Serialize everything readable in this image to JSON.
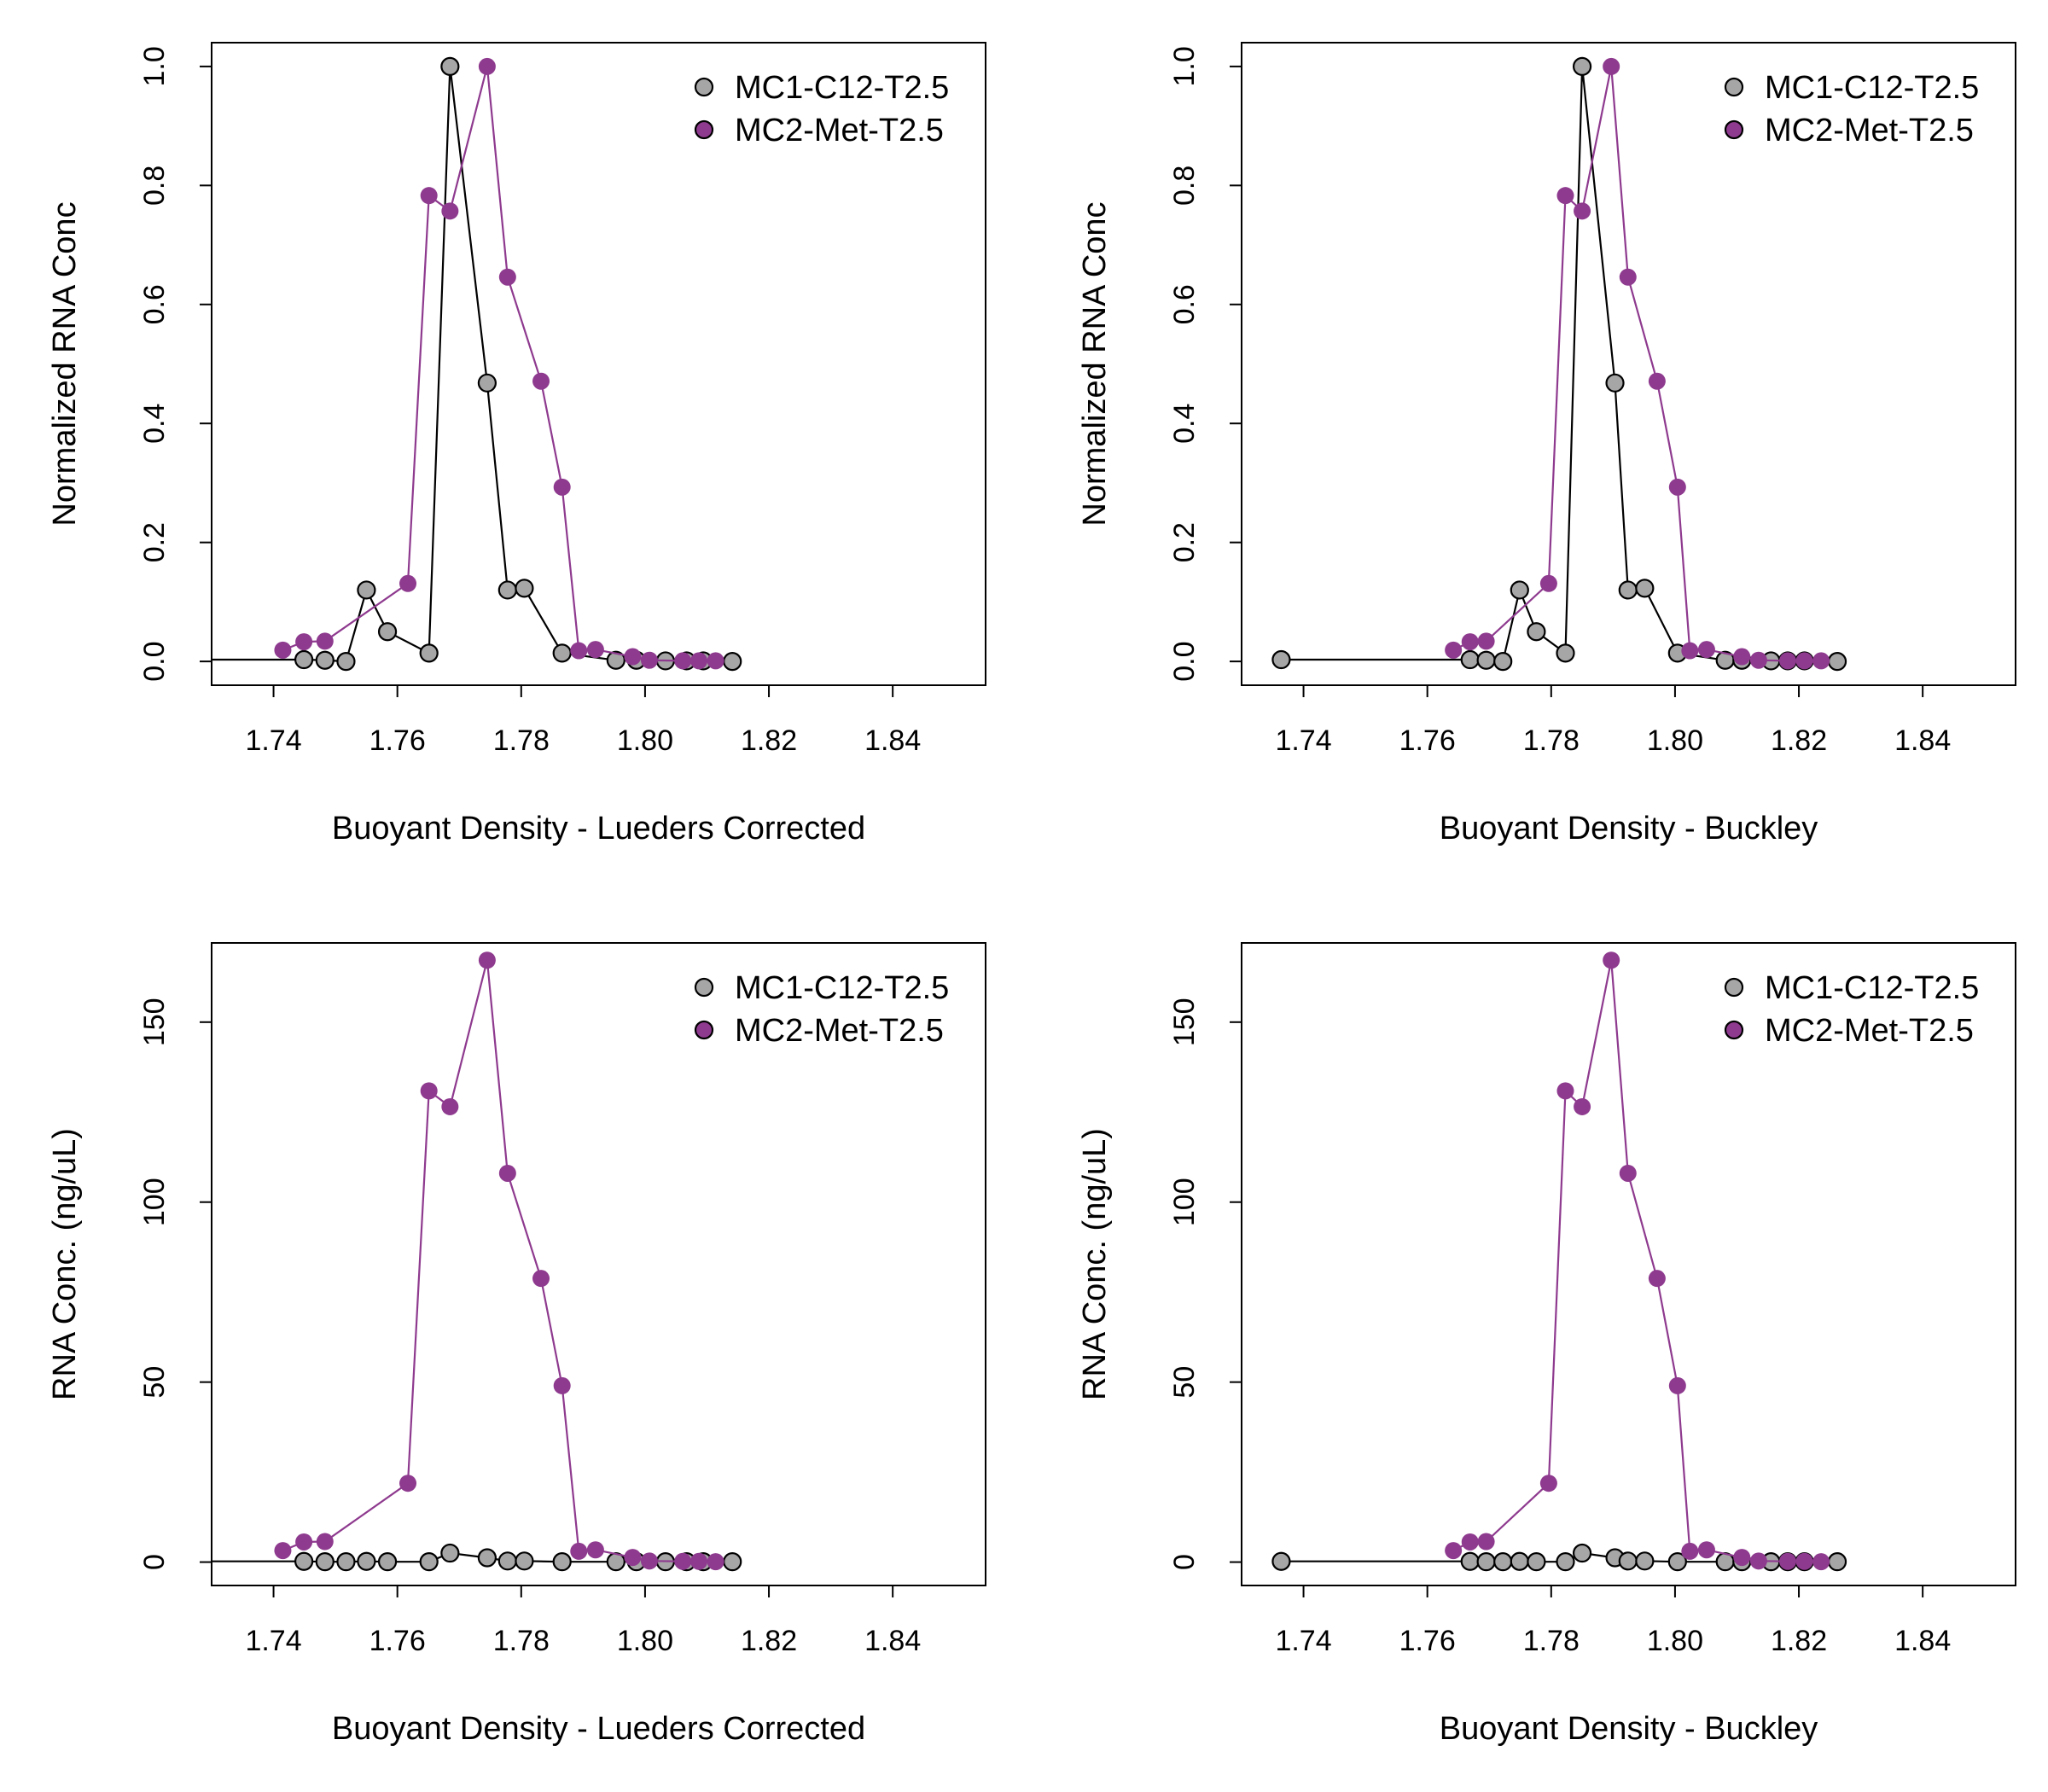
{
  "chart_data": [
    {
      "type": "line",
      "xlabel": "Buoyant Density - Lueders Corrected",
      "ylabel": "Normalized RNA Conc",
      "xlim": [
        1.73,
        1.855
      ],
      "ylim": [
        -0.04,
        1.04
      ],
      "xticks": [
        "1.74",
        "1.76",
        "1.78",
        "1.80",
        "1.82",
        "1.84"
      ],
      "yticks": [
        "0.0",
        "0.2",
        "0.4",
        "0.6",
        "0.8",
        "1.0"
      ],
      "legend": "top-right",
      "series": [
        {
          "name": "MC1-C12-T2.5",
          "color": "#000000",
          "marker_fill": "#a6a6a6",
          "x": [
            1.7248,
            1.7449,
            1.7483,
            1.7517,
            1.755,
            1.7584,
            1.7651,
            1.7685,
            1.7745,
            1.7778,
            1.7805,
            1.7866,
            1.7953,
            1.7986,
            1.8033,
            1.8067,
            1.8094,
            1.8141
          ],
          "y": [
            0.003,
            0.003,
            0.002,
            0.0,
            0.12,
            0.05,
            0.014,
            1.0,
            0.468,
            0.12,
            0.123,
            0.014,
            0.002,
            0.002,
            0.001,
            0.001,
            0.001,
            0.0
          ]
        },
        {
          "name": "MC2-Met-T2.5",
          "color": "#8e3a8e",
          "marker_fill": "#8e3a8e",
          "x": [
            1.7415,
            1.7449,
            1.7483,
            1.7617,
            1.7651,
            1.7685,
            1.7745,
            1.7778,
            1.7832,
            1.7866,
            1.7893,
            1.792,
            1.798,
            1.8007,
            1.8061,
            1.8087,
            1.8114
          ],
          "y": [
            0.019,
            0.033,
            0.034,
            0.131,
            0.783,
            0.757,
            1.0,
            0.646,
            0.471,
            0.293,
            0.018,
            0.02,
            0.008,
            0.002,
            0.001,
            0.001,
            0.001
          ]
        }
      ]
    },
    {
      "type": "line",
      "xlabel": "Buoyant Density - Buckley",
      "ylabel": "Normalized RNA Conc",
      "xlim": [
        1.73,
        1.855
      ],
      "ylim": [
        -0.04,
        1.04
      ],
      "xticks": [
        "1.74",
        "1.76",
        "1.78",
        "1.80",
        "1.82",
        "1.84"
      ],
      "yticks": [
        "0.0",
        "0.2",
        "0.4",
        "0.6",
        "0.8",
        "1.0"
      ],
      "legend": "top-right",
      "series": [
        {
          "name": "MC1-C12-T2.5",
          "color": "#000000",
          "marker_fill": "#a6a6a6",
          "x": [
            1.7364,
            1.7669,
            1.7695,
            1.7722,
            1.7749,
            1.7776,
            1.7823,
            1.785,
            1.7903,
            1.7924,
            1.7951,
            1.8004,
            1.8081,
            1.8108,
            1.8155,
            1.8182,
            1.8209,
            1.8262
          ],
          "y": [
            0.003,
            0.003,
            0.002,
            0.0,
            0.12,
            0.05,
            0.014,
            1.0,
            0.468,
            0.12,
            0.123,
            0.014,
            0.002,
            0.002,
            0.001,
            0.001,
            0.001,
            0.0
          ]
        },
        {
          "name": "MC2-Met-T2.5",
          "color": "#8e3a8e",
          "marker_fill": "#8e3a8e",
          "x": [
            1.7642,
            1.7669,
            1.7695,
            1.7796,
            1.7823,
            1.785,
            1.7897,
            1.7924,
            1.7971,
            1.8004,
            1.8024,
            1.8051,
            1.8108,
            1.8135,
            1.8182,
            1.8209,
            1.8236
          ],
          "y": [
            0.019,
            0.033,
            0.034,
            0.131,
            0.783,
            0.757,
            1.0,
            0.646,
            0.471,
            0.293,
            0.018,
            0.02,
            0.008,
            0.002,
            0.001,
            0.001,
            0.001
          ]
        }
      ]
    },
    {
      "type": "line",
      "xlabel": "Buoyant Density - Lueders Corrected",
      "ylabel": "RNA Conc. (ng/uL)",
      "xlim": [
        1.73,
        1.855
      ],
      "ylim": [
        -6.5,
        172
      ],
      "xticks": [
        "1.74",
        "1.76",
        "1.78",
        "1.80",
        "1.82",
        "1.84"
      ],
      "yticks": [
        "0",
        "50",
        "100",
        "150"
      ],
      "legend": "top-right",
      "series": [
        {
          "name": "MC1-C12-T2.5",
          "color": "#000000",
          "marker_fill": "#a6a6a6",
          "x": [
            1.7248,
            1.7449,
            1.7483,
            1.7517,
            1.755,
            1.7584,
            1.7651,
            1.7685,
            1.7745,
            1.7778,
            1.7805,
            1.7866,
            1.7953,
            1.7986,
            1.8033,
            1.8067,
            1.8094,
            1.8141
          ],
          "y": [
            0.2,
            0.2,
            0.1,
            0.1,
            0.2,
            0.1,
            0.1,
            2.5,
            1.2,
            0.3,
            0.3,
            0.1,
            0.1,
            0.1,
            0.1,
            0.1,
            0.1,
            0.1
          ]
        },
        {
          "name": "MC2-Met-T2.5",
          "color": "#8e3a8e",
          "marker_fill": "#8e3a8e",
          "x": [
            1.7415,
            1.7449,
            1.7483,
            1.7617,
            1.7651,
            1.7685,
            1.7745,
            1.7778,
            1.7832,
            1.7866,
            1.7893,
            1.792,
            1.798,
            1.8007,
            1.8061,
            1.8087,
            1.8114
          ],
          "y": [
            3.2,
            5.6,
            5.7,
            21.9,
            130.9,
            126.5,
            167.2,
            108.0,
            78.8,
            49.0,
            3.0,
            3.4,
            1.3,
            0.3,
            0.2,
            0.2,
            0.1
          ]
        }
      ]
    },
    {
      "type": "line",
      "xlabel": "Buoyant Density - Buckley",
      "ylabel": "RNA Conc. (ng/uL)",
      "xlim": [
        1.73,
        1.855
      ],
      "ylim": [
        -6.5,
        172
      ],
      "xticks": [
        "1.74",
        "1.76",
        "1.78",
        "1.80",
        "1.82",
        "1.84"
      ],
      "yticks": [
        "0",
        "50",
        "100",
        "150"
      ],
      "legend": "top-right",
      "series": [
        {
          "name": "MC1-C12-T2.5",
          "color": "#000000",
          "marker_fill": "#a6a6a6",
          "x": [
            1.7364,
            1.7669,
            1.7695,
            1.7722,
            1.7749,
            1.7776,
            1.7823,
            1.785,
            1.7903,
            1.7924,
            1.7951,
            1.8004,
            1.8081,
            1.8108,
            1.8155,
            1.8182,
            1.8209,
            1.8262
          ],
          "y": [
            0.2,
            0.2,
            0.1,
            0.1,
            0.2,
            0.1,
            0.1,
            2.5,
            1.2,
            0.3,
            0.3,
            0.1,
            0.1,
            0.1,
            0.1,
            0.1,
            0.1,
            0.1
          ]
        },
        {
          "name": "MC2-Met-T2.5",
          "color": "#8e3a8e",
          "marker_fill": "#8e3a8e",
          "x": [
            1.7642,
            1.7669,
            1.7695,
            1.7796,
            1.7823,
            1.785,
            1.7897,
            1.7924,
            1.7971,
            1.8004,
            1.8024,
            1.8051,
            1.8108,
            1.8135,
            1.8182,
            1.8209,
            1.8236
          ],
          "y": [
            3.2,
            5.6,
            5.7,
            21.9,
            130.9,
            126.5,
            167.2,
            108.0,
            78.8,
            49.0,
            3.0,
            3.4,
            1.3,
            0.3,
            0.2,
            0.2,
            0.1
          ]
        }
      ]
    }
  ]
}
